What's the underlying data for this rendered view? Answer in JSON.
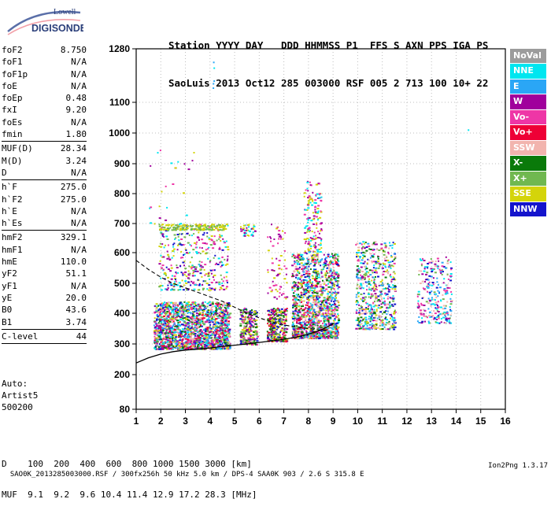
{
  "logo": {
    "line1": "Lowell",
    "line2": "DIGISONDE"
  },
  "header": {
    "labels": "Station YYYY DAY   DDD HHMMSS P1  FFS S AXN PPS IGA PS",
    "values": "SaoLuis 2013 Oct12 285 003000 RSF 005 2 713 100 10+ 22"
  },
  "params": [
    [
      {
        "name": "foF2",
        "value": "8.750"
      },
      {
        "name": "foF1",
        "value": "N/A"
      },
      {
        "name": "foF1p",
        "value": "N/A"
      },
      {
        "name": "foE",
        "value": "N/A"
      },
      {
        "name": "foEp",
        "value": "0.48"
      },
      {
        "name": "fxI",
        "value": "9.20"
      },
      {
        "name": "foEs",
        "value": "N/A"
      },
      {
        "name": "fmin",
        "value": "1.80"
      }
    ],
    [
      {
        "name": "MUF(D)",
        "value": "28.34"
      },
      {
        "name": "M(D)",
        "value": "3.24"
      },
      {
        "name": "D",
        "value": "N/A"
      }
    ],
    [
      {
        "name": "h`F",
        "value": "275.0"
      },
      {
        "name": "h`F2",
        "value": "275.0"
      },
      {
        "name": "h`E",
        "value": "N/A"
      },
      {
        "name": "h`Es",
        "value": "N/A"
      }
    ],
    [
      {
        "name": "hmF2",
        "value": "329.1"
      },
      {
        "name": "hmF1",
        "value": "N/A"
      },
      {
        "name": "hmE",
        "value": "110.0"
      },
      {
        "name": "yF2",
        "value": "51.1"
      },
      {
        "name": "yF1",
        "value": "N/A"
      },
      {
        "name": "yE",
        "value": "20.0"
      },
      {
        "name": "B0",
        "value": "43.6"
      },
      {
        "name": "B1",
        "value": "3.74"
      }
    ],
    [
      {
        "name": "C-level",
        "value": "44"
      }
    ]
  ],
  "auto": {
    "line1": "Auto:",
    "line2": "Artist5",
    "line3": "500200"
  },
  "legend": [
    {
      "label": "NoVal",
      "color": "#9c9c9c"
    },
    {
      "label": "NNE",
      "color": "#00e6f0"
    },
    {
      "label": "E",
      "color": "#2aa6f6"
    },
    {
      "label": "W",
      "color": "#a0009c"
    },
    {
      "label": "Vo-",
      "color": "#ee36a6"
    },
    {
      "label": "Vo+",
      "color": "#ee0036"
    },
    {
      "label": "SSW",
      "color": "#f2b4ae"
    },
    {
      "label": "X-",
      "color": "#0a7a0a"
    },
    {
      "label": "X+",
      "color": "#70b850"
    },
    {
      "label": "SSE",
      "color": "#d4d40a"
    },
    {
      "label": "NNW",
      "color": "#1414cc"
    }
  ],
  "dm_table": {
    "line1": "D    100  200  400  600  800 1000 1500 3000 [km]",
    "line2": "MUF  9.1  9.2  9.6 10.4 11.4 12.9 17.2 28.3 [MHz]"
  },
  "footer": {
    "left": "SAO0K_2013285003000.RSF / 300fx256h 50 kHz 5.0 km / DPS-4 SAA0K 903 / 2.6 S 315.8 E",
    "right": "Ion2Png 1.3.17"
  },
  "chart_data": {
    "type": "scatter",
    "xlabel": "",
    "ylabel": "",
    "x_ticks": [
      1,
      2,
      3,
      4,
      5,
      6,
      7,
      8,
      9,
      10,
      11,
      12,
      13,
      14,
      15,
      16
    ],
    "y_ticks": [
      80,
      200,
      300,
      400,
      500,
      600,
      700,
      800,
      900,
      1000,
      1100,
      1280
    ],
    "xlim": [
      1,
      16
    ],
    "ylim": [
      80,
      1280
    ],
    "y_scale": "nonlinear (ionogram virtual height)",
    "trace_curve": {
      "name": "",
      "x": [
        1.0,
        1.5,
        2.0,
        2.5,
        3.0,
        3.5,
        4.0,
        4.5,
        5.0,
        5.5,
        6.0,
        6.5,
        7.0,
        7.5,
        8.0,
        8.5,
        9.0
      ],
      "y": [
        238,
        255,
        267,
        275,
        280,
        283,
        287,
        292,
        296,
        300,
        305,
        310,
        315,
        322,
        332,
        345,
        365
      ]
    },
    "profile_curve": {
      "name": "",
      "x": [
        1.0,
        1.5,
        2.0,
        2.5,
        3.0,
        3.5,
        4.0,
        4.5,
        5.0,
        5.5,
        6.0,
        6.5,
        7.0,
        7.5,
        8.0,
        8.5,
        8.75
      ],
      "y": [
        575,
        545,
        520,
        500,
        485,
        470,
        455,
        440,
        420,
        400,
        385,
        372,
        362,
        355,
        350,
        345,
        345
      ]
    },
    "echo_clusters": [
      {
        "x": [
          1.7,
          4.8
        ],
        "y": [
          285,
          440
        ],
        "n": 1800,
        "colors": [
          "NNE",
          "E",
          "W",
          "Vo-",
          "Vo+",
          "SSW",
          "X-",
          "X+",
          "SSE",
          "NNW"
        ]
      },
      {
        "x": [
          1.9,
          4.7
        ],
        "y": [
          480,
          700
        ],
        "n": 380,
        "colors": [
          "W",
          "Vo-",
          "SSE",
          "X+",
          "NNW",
          "NNE"
        ]
      },
      {
        "x": [
          1.9,
          4.6
        ],
        "y": [
          680,
          700
        ],
        "n": 150,
        "colors": [
          "SSE",
          "X+"
        ]
      },
      {
        "x": [
          5.2,
          5.9
        ],
        "y": [
          300,
          420
        ],
        "n": 260,
        "colors": [
          "SSE",
          "X+",
          "X-",
          "NNW",
          "Vo-",
          "W"
        ]
      },
      {
        "x": [
          5.2,
          5.8
        ],
        "y": [
          660,
          700
        ],
        "n": 40,
        "colors": [
          "SSE",
          "NNE",
          "W"
        ]
      },
      {
        "x": [
          6.3,
          7.1
        ],
        "y": [
          310,
          420
        ],
        "n": 300,
        "colors": [
          "SSE",
          "X+",
          "X-",
          "W",
          "Vo+",
          "NNW"
        ]
      },
      {
        "x": [
          6.3,
          7.1
        ],
        "y": [
          450,
          700
        ],
        "n": 70,
        "colors": [
          "W",
          "Vo-",
          "SSE"
        ]
      },
      {
        "x": [
          7.3,
          9.2
        ],
        "y": [
          320,
          600
        ],
        "n": 1400,
        "colors": [
          "NNW",
          "SSE",
          "X+",
          "X-",
          "Vo-",
          "Vo+",
          "W",
          "SSW",
          "NNE",
          "E"
        ]
      },
      {
        "x": [
          7.8,
          8.5
        ],
        "y": [
          600,
          850
        ],
        "n": 160,
        "colors": [
          "W",
          "Vo-",
          "SSE",
          "NNE"
        ]
      },
      {
        "x": [
          9.9,
          11.5
        ],
        "y": [
          350,
          640
        ],
        "n": 600,
        "colors": [
          "NNE",
          "E",
          "SSW",
          "Vo-",
          "X+",
          "SSE",
          "W",
          "X-",
          "NNW"
        ]
      },
      {
        "x": [
          12.4,
          13.8
        ],
        "y": [
          370,
          590
        ],
        "n": 260,
        "colors": [
          "SSW",
          "Vo-",
          "NNE",
          "E",
          "W",
          "X+",
          "NNW"
        ]
      },
      {
        "x": [
          1.5,
          3.5
        ],
        "y": [
          700,
          960
        ],
        "n": 25,
        "colors": [
          "W",
          "Vo-",
          "SSE",
          "NNE"
        ]
      },
      {
        "x": [
          4.1,
          4.2
        ],
        "y": [
          1150,
          1240
        ],
        "n": 5,
        "colors": [
          "NNE",
          "E"
        ]
      },
      {
        "x": [
          14.4,
          14.5
        ],
        "y": [
          1010,
          1030
        ],
        "n": 1,
        "colors": [
          "NNE"
        ]
      }
    ]
  }
}
